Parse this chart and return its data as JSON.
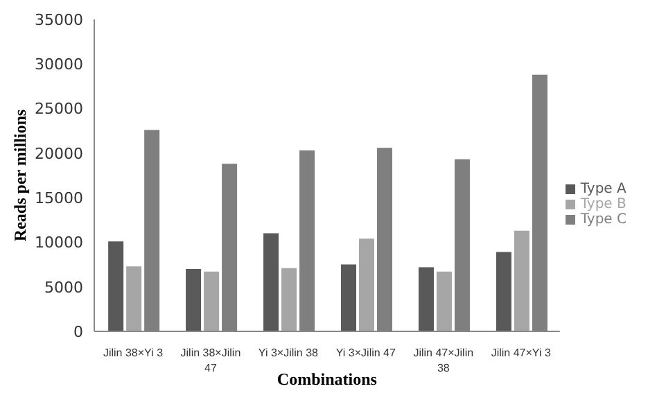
{
  "chart_data": {
    "type": "bar",
    "xlabel": "Combinations",
    "ylabel": "Reads per millions",
    "categories": [
      "Jilin 38×Yi 3",
      "Jilin 38×Jilin 47",
      "Yi 3×Jilin 38",
      "Yi 3×Jilin 47",
      "Jilin 47×Jilin 38",
      "Jilin 47×Yi 3"
    ],
    "series": [
      {
        "name": "Type A",
        "color": "#595959",
        "values": [
          10100,
          7000,
          11000,
          7500,
          7200,
          8900
        ]
      },
      {
        "name": "Type B",
        "color": "#a6a6a6",
        "values": [
          7300,
          6700,
          7100,
          10400,
          6700,
          11300
        ]
      },
      {
        "name": "Type C",
        "color": "#7f7f7f",
        "values": [
          22600,
          18800,
          20300,
          20600,
          19300,
          28800
        ]
      }
    ],
    "ylim": [
      0,
      35000
    ],
    "yticks": [
      0,
      5000,
      10000,
      15000,
      20000,
      25000,
      30000,
      35000
    ],
    "grid": false,
    "legend": "right"
  }
}
